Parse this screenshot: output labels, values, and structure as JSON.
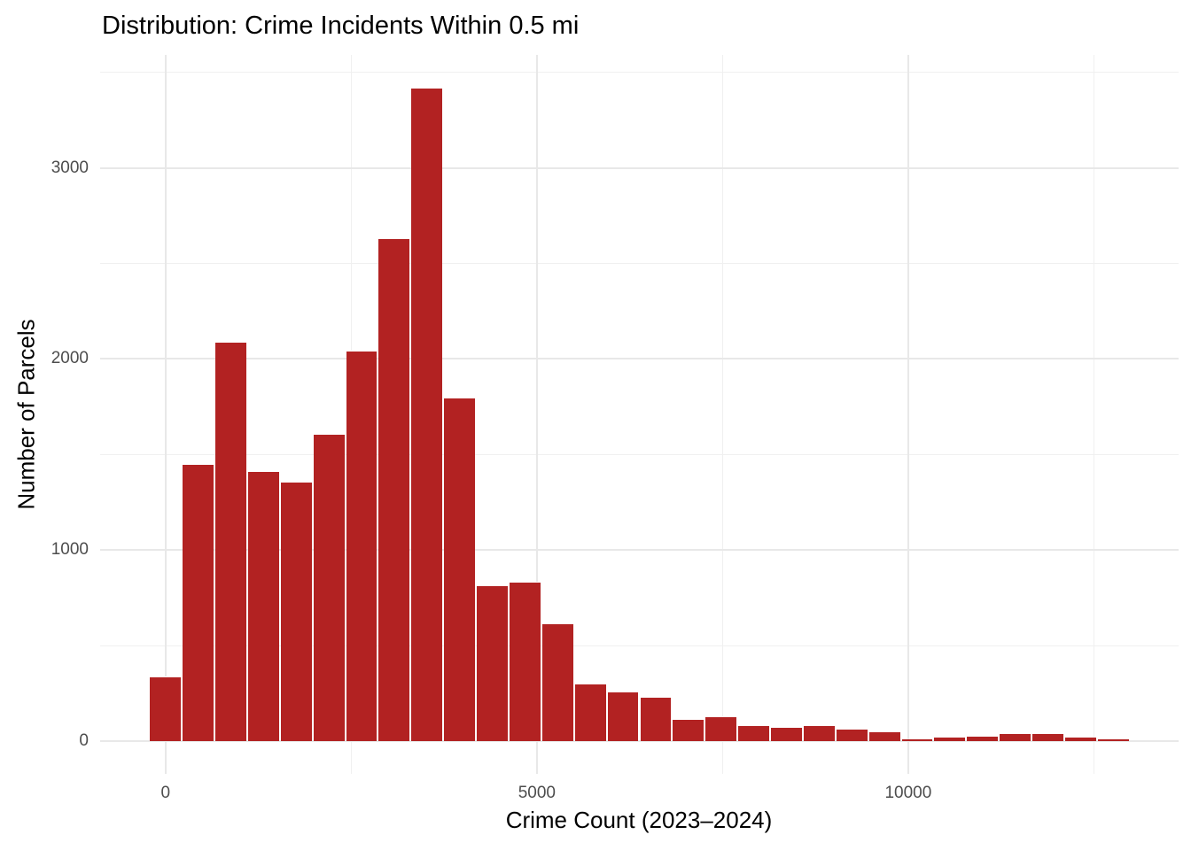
{
  "chart_data": {
    "type": "bar",
    "subtype": "histogram",
    "title": "Distribution: Crime Incidents Within 0.5 mi",
    "xlabel": "Crime Count (2023–2024)",
    "ylabel": "Number of Parcels",
    "legend": "none",
    "grid": true,
    "bin_start": -220,
    "bin_width": 440,
    "counts": [
      340,
      1450,
      2090,
      1415,
      1360,
      1610,
      2045,
      2630,
      3420,
      1800,
      815,
      835,
      615,
      300,
      260,
      230,
      115,
      130,
      85,
      75,
      85,
      65,
      50,
      10,
      25,
      30,
      40,
      40,
      20,
      8
    ],
    "x_ticks": [
      {
        "value": 0,
        "label": "0"
      },
      {
        "value": 5000,
        "label": "5000"
      },
      {
        "value": 10000,
        "label": "10000"
      }
    ],
    "x_minor_ticks": [
      2500,
      7500,
      12500
    ],
    "y_ticks": [
      {
        "value": 0,
        "label": "0"
      },
      {
        "value": 1000,
        "label": "1000"
      },
      {
        "value": 2000,
        "label": "2000"
      },
      {
        "value": 3000,
        "label": "3000"
      }
    ],
    "y_minor_ticks": [
      500,
      1500,
      2500,
      3500
    ],
    "x_range": [
      -880,
      13640
    ],
    "y_range": [
      -171,
      3591
    ],
    "colors": {
      "bar_fill": "#b22222",
      "bar_stroke": "#ffffff",
      "grid_major": "#e8e8e8",
      "grid_minor": "#f0f0f0",
      "axis_text": "#4d4d4d",
      "title_text": "#000000"
    }
  }
}
